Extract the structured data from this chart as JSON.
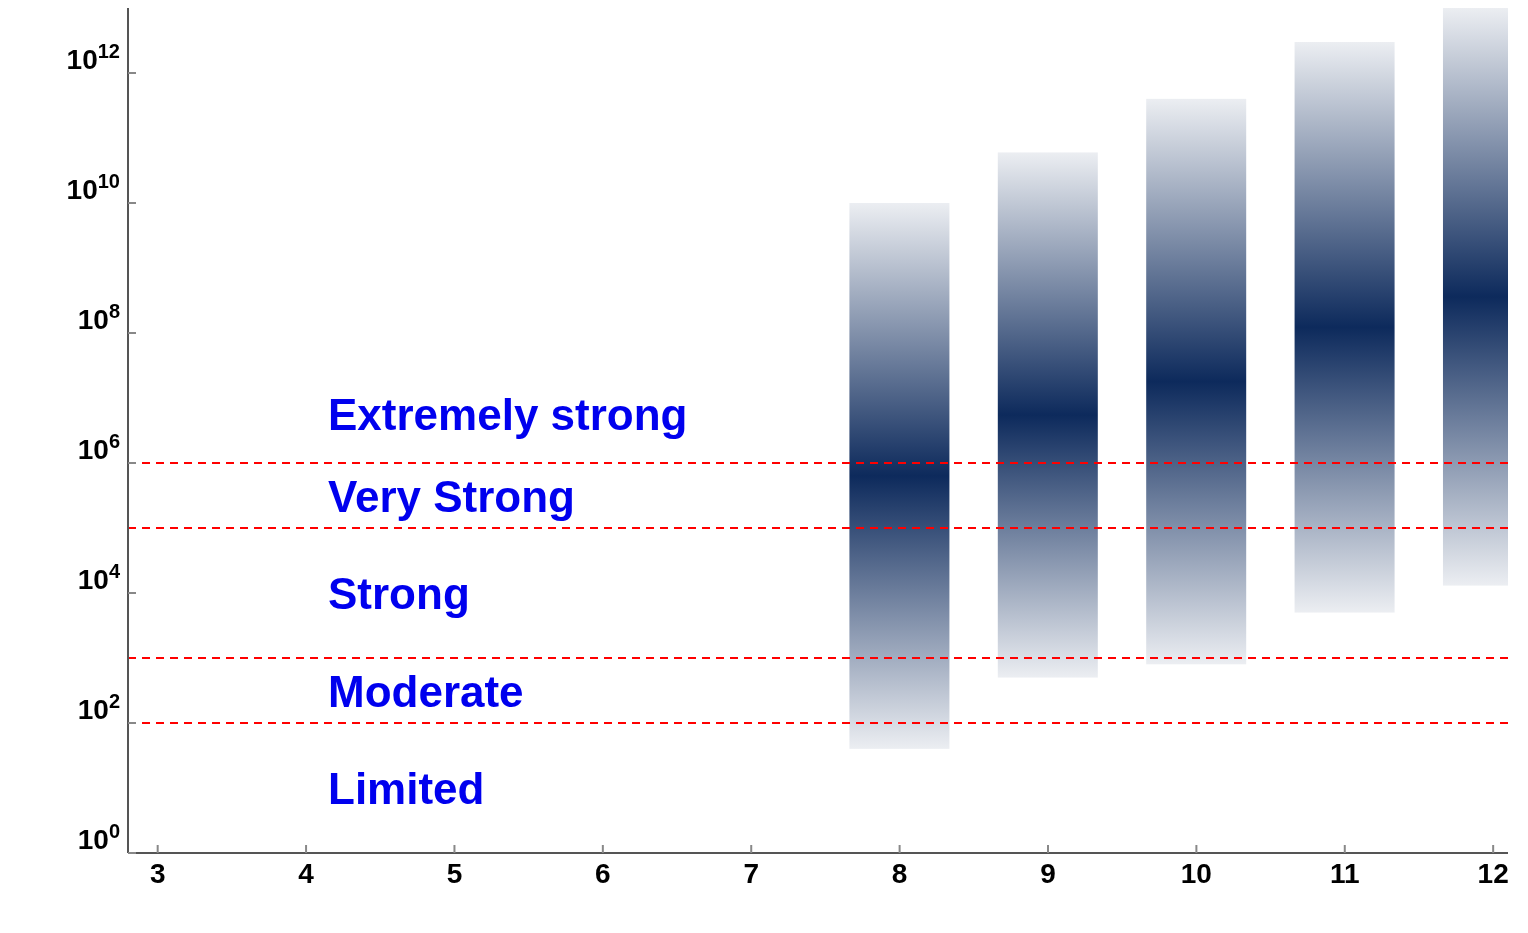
{
  "chart_data": {
    "type": "bar",
    "x": [
      8,
      9,
      10,
      11,
      12
    ],
    "series": [
      {
        "color": "#0d2a5c",
        "base": [
          40,
          500,
          800,
          5000,
          13000
        ],
        "values": [
          10000000000,
          60000000000,
          400000000000,
          3000000000000,
          10000000000000
        ]
      }
    ],
    "log": "y",
    "xlim": [
      2.8,
      12.1
    ],
    "ylim": [
      1,
      10000000000000
    ],
    "xticks": [
      3,
      4,
      5,
      6,
      7,
      8,
      9,
      10,
      11,
      12
    ],
    "yticks": [
      {
        "value": 1,
        "label": "10$^{0}$"
      },
      {
        "value": 100,
        "label": "10$^{2}$"
      },
      {
        "value": 10000,
        "label": "10$^{4}$"
      },
      {
        "value": 1000000,
        "label": "10$^{6}$"
      },
      {
        "value": 100000000,
        "label": "10$^{8}$"
      },
      {
        "value": 10000000000,
        "label": "10$^{10}$"
      },
      {
        "value": 1000000000000,
        "label": "10$^{12}$"
      }
    ],
    "ref_lines": [
      {
        "axis": "y",
        "value": 100,
        "color": "#ff0000",
        "line_style": "dashed"
      },
      {
        "axis": "y",
        "value": 1000,
        "color": "#ff0000",
        "line_style": "dashed"
      },
      {
        "axis": "y",
        "value": 100000,
        "color": "#ff0000",
        "line_style": "dashed"
      },
      {
        "axis": "y",
        "value": 1000000,
        "color": "#ff0000",
        "line_style": "dashed"
      }
    ],
    "annotations": [
      "Extremely strong",
      "Very Strong",
      "Strong",
      "Moderate",
      "Limited"
    ]
  }
}
